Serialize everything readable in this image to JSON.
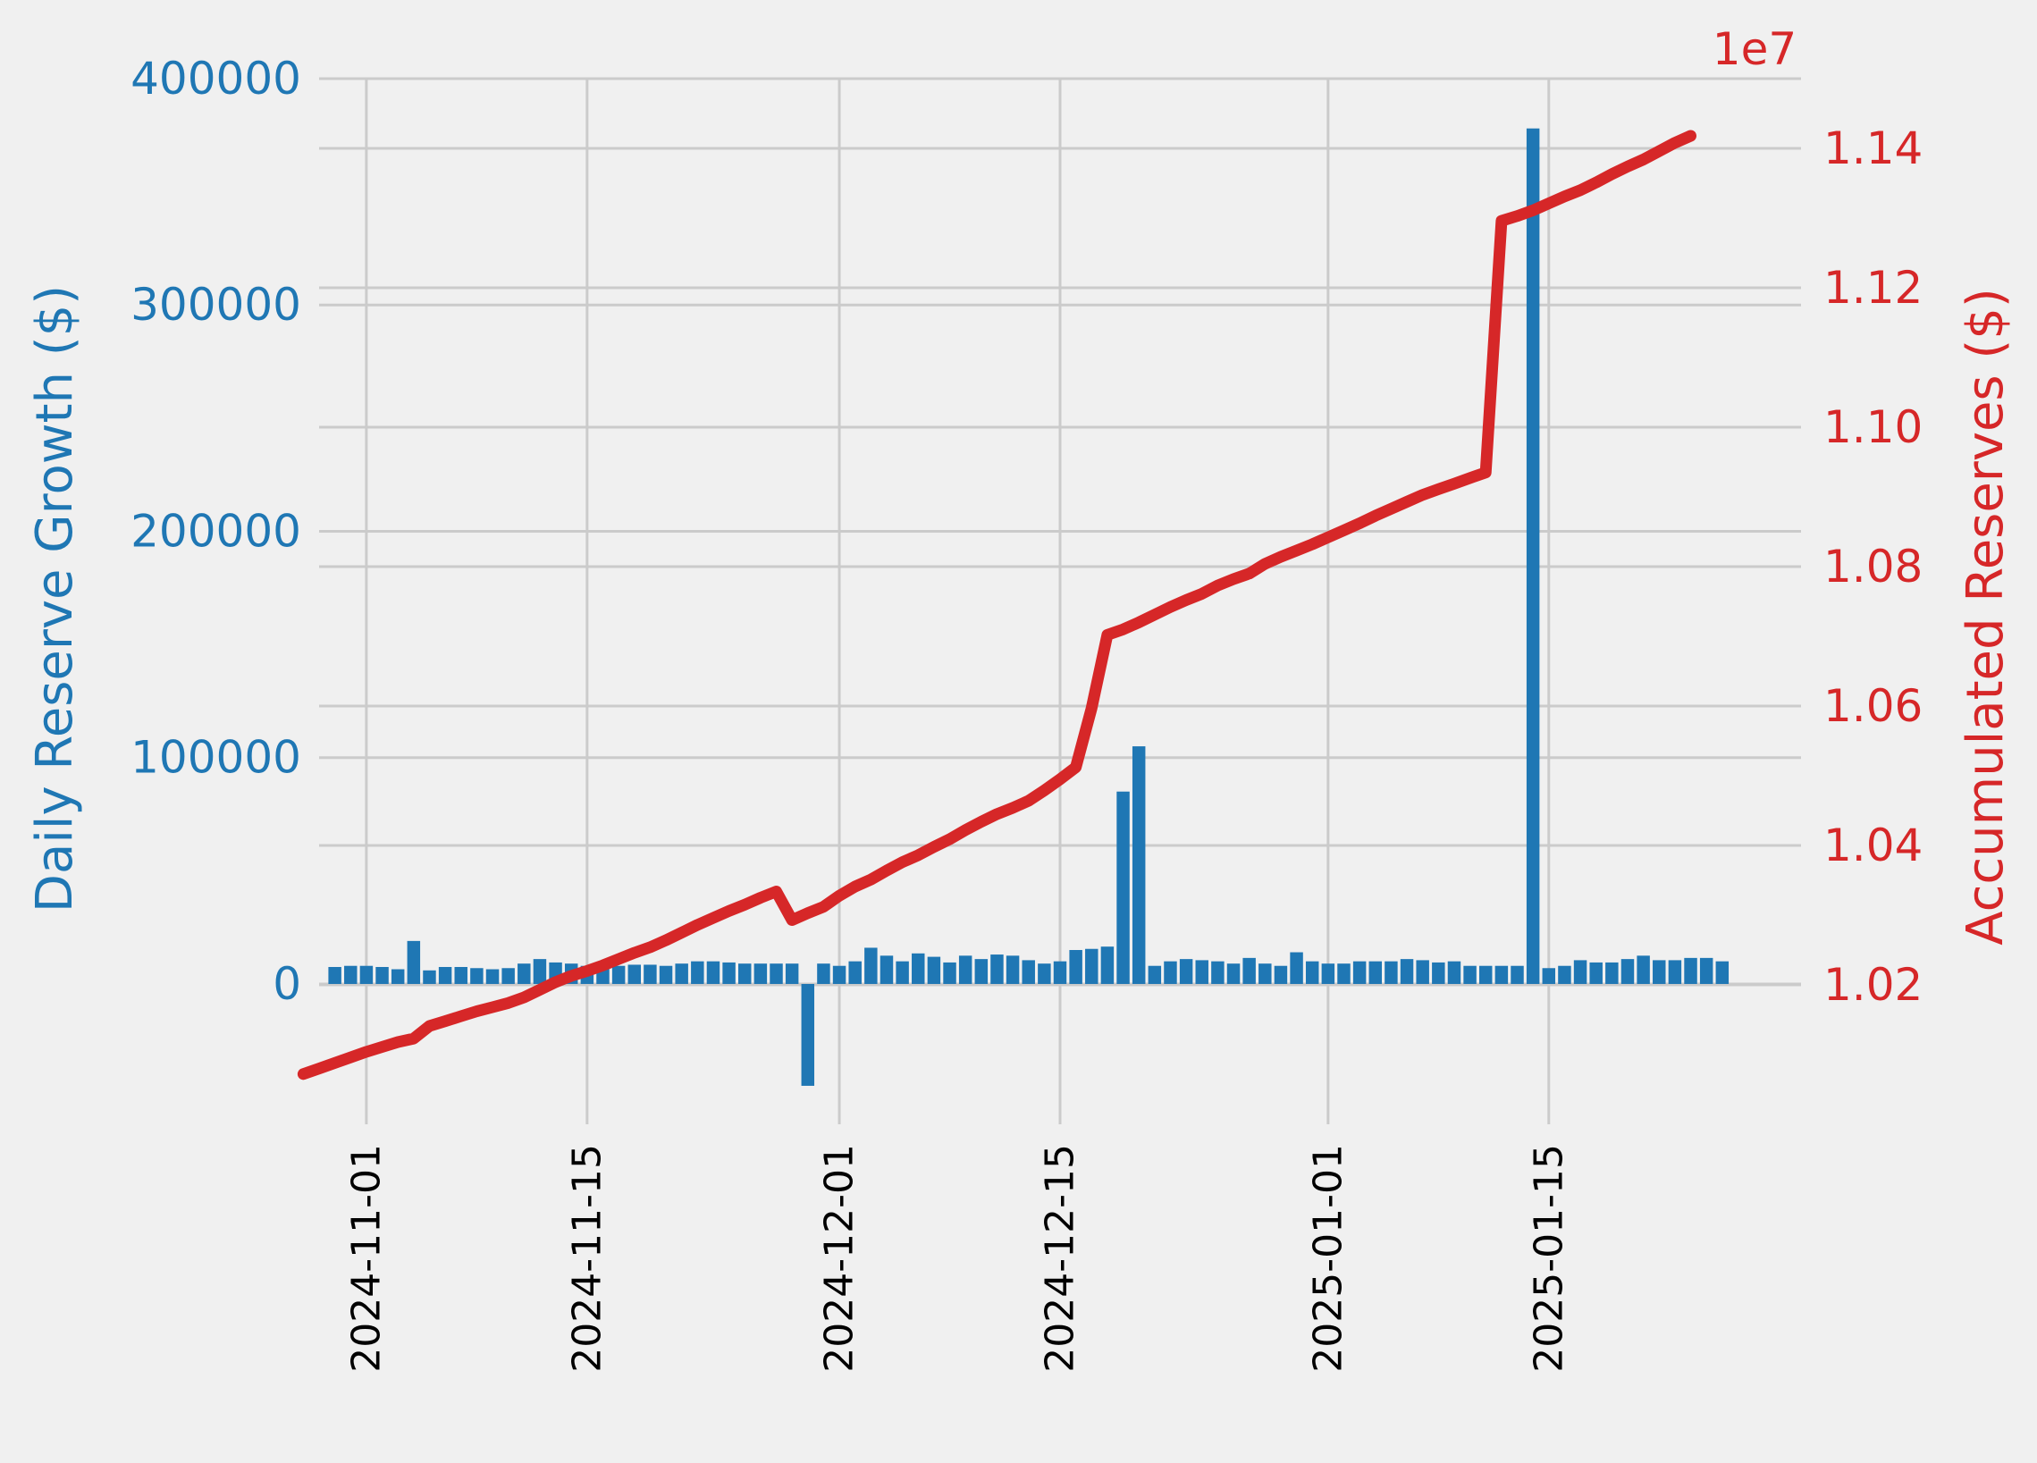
{
  "chart_data": {
    "type": "bar+line",
    "colors": {
      "bars": "#1f77b4",
      "line": "#d62728",
      "background": "#f0f0f0",
      "grid": "#cbcbcb",
      "x_ticks": "#000000"
    },
    "x_axis": {
      "type": "date",
      "tick_labels": [
        "2024-11-01",
        "2024-11-15",
        "2024-12-01",
        "2024-12-15",
        "2025-01-01",
        "2025-01-15"
      ],
      "range": [
        "2024-10-29",
        "2025-01-31"
      ]
    },
    "y_left": {
      "label": "Daily Reserve Growth ($)",
      "tick_labels": [
        "0",
        "100000",
        "200000",
        "300000",
        "400000"
      ],
      "range": [
        -62000,
        400000
      ]
    },
    "y_right": {
      "label": "Accumulated Reserves ($)",
      "offset_text": "1e7",
      "tick_labels": [
        "1.02",
        "1.04",
        "1.06",
        "1.08",
        "1.10",
        "1.12",
        "1.14"
      ],
      "range": [
        10.0,
        11.5
      ]
    },
    "grid": true,
    "daily_growth": {
      "start_date": "2024-10-30",
      "values": [
        7500,
        8000,
        8000,
        7500,
        6500,
        19000,
        6000,
        7500,
        7500,
        7000,
        6500,
        7000,
        9000,
        11000,
        9500,
        9000,
        8000,
        8000,
        8000,
        8500,
        8500,
        8000,
        9000,
        10000,
        10000,
        9500,
        9000,
        9000,
        9000,
        9000,
        -45000,
        9000,
        8000,
        10000,
        16000,
        12500,
        10000,
        13500,
        12000,
        9500,
        12500,
        11000,
        13000,
        12500,
        10500,
        9000,
        10000,
        15000,
        15500,
        16500,
        85000,
        105000,
        8000,
        10000,
        11000,
        10500,
        10000,
        9000,
        11500,
        9000,
        8000,
        14000,
        10000,
        9000,
        9000,
        10000,
        10000,
        10000,
        11000,
        10500,
        9500,
        10000,
        8000,
        8000,
        8000,
        8000,
        378000,
        7000,
        8000,
        10500,
        9500,
        9500,
        11000,
        12500,
        10500,
        10500,
        11500,
        11500,
        10000
      ]
    },
    "accumulated_reserves": {
      "unit_scale": 10000000.0,
      "start_date": "2024-10-28",
      "values": [
        1.0072,
        1.008,
        1.0088,
        1.0096,
        1.0104,
        1.0111,
        1.0118,
        1.0123,
        1.0141,
        1.0148,
        1.0155,
        1.0162,
        1.0168,
        1.0174,
        1.0182,
        1.0193,
        1.0204,
        1.0213,
        1.022,
        1.0228,
        1.0237,
        1.0246,
        1.0254,
        1.0264,
        1.0275,
        1.0286,
        1.0296,
        1.0306,
        1.0315,
        1.0325,
        1.0334,
        1.0293,
        1.0303,
        1.0312,
        1.0328,
        1.0341,
        1.0351,
        1.0364,
        1.0376,
        1.0386,
        1.0398,
        1.0409,
        1.0422,
        1.0434,
        1.0445,
        1.0454,
        1.0464,
        1.0479,
        1.0495,
        1.0512,
        1.0597,
        1.0702,
        1.071,
        1.072,
        1.0731,
        1.0742,
        1.0752,
        1.0761,
        1.0773,
        1.0782,
        1.079,
        1.0804,
        1.0814,
        1.0823,
        1.0832,
        1.0842,
        1.0852,
        1.0862,
        1.0873,
        1.0883,
        1.0893,
        1.0903,
        1.0911,
        1.0919,
        1.0927,
        1.0935,
        1.1296,
        1.1303,
        1.1311,
        1.1321,
        1.1331,
        1.134,
        1.1351,
        1.1363,
        1.1374,
        1.1384,
        1.1396,
        1.1408,
        1.1418
      ]
    }
  }
}
